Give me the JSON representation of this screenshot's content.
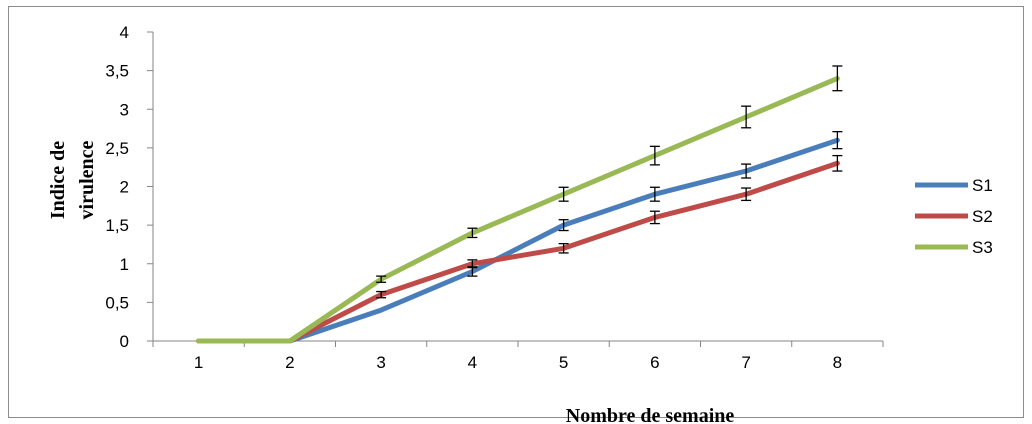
{
  "chart_data": {
    "type": "line",
    "title": "",
    "xlabel": "Nombre de semaine",
    "ylabel_lines": [
      "Indice de",
      "virulence"
    ],
    "categories": [
      "1",
      "2",
      "3",
      "4",
      "5",
      "6",
      "7",
      "8"
    ],
    "yticks": [
      "0",
      "0,5",
      "1",
      "1,5",
      "2",
      "2,5",
      "3",
      "3,5",
      "4"
    ],
    "ylim": [
      0,
      4
    ],
    "grid": false,
    "legend_position": "right",
    "series": [
      {
        "name": "S1",
        "color": "#4a7ebb",
        "values": [
          0,
          0,
          0.4,
          0.9,
          1.5,
          1.9,
          2.2,
          2.6
        ],
        "errors": [
          0,
          0,
          0,
          0.06,
          0.07,
          0.09,
          0.09,
          0.11
        ]
      },
      {
        "name": "S2",
        "color": "#be4b48",
        "values": [
          0,
          0,
          0.6,
          1.0,
          1.2,
          1.6,
          1.9,
          2.3
        ],
        "errors": [
          0,
          0,
          0.04,
          0.05,
          0.06,
          0.08,
          0.08,
          0.1
        ]
      },
      {
        "name": "S3",
        "color": "#98b954",
        "values": [
          0,
          0,
          0.8,
          1.4,
          1.9,
          2.4,
          2.9,
          3.4
        ],
        "errors": [
          0,
          0,
          0.04,
          0.06,
          0.09,
          0.12,
          0.14,
          0.16
        ]
      }
    ]
  }
}
